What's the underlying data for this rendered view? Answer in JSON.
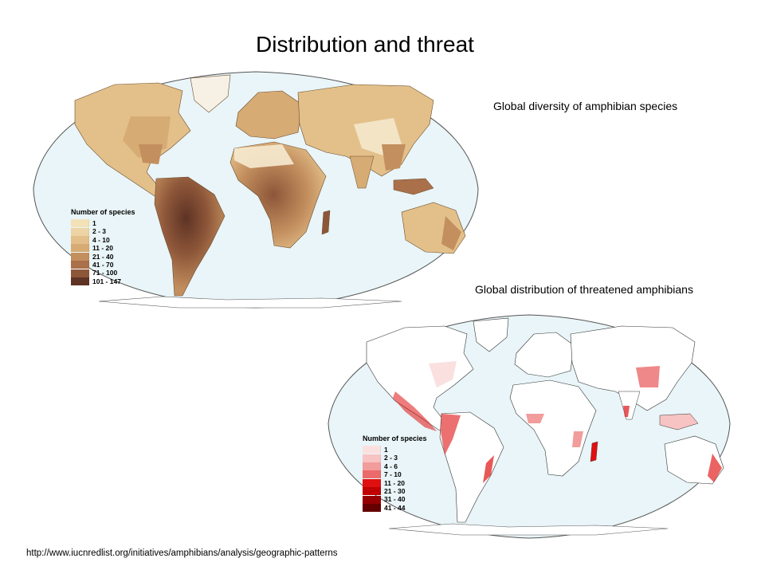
{
  "title": "Distribution and threat",
  "maps": {
    "diversity": {
      "caption": "Global diversity of amphibian species",
      "legend_title": "Number of species",
      "legend": [
        {
          "label": "1",
          "color": "#f3e2b8"
        },
        {
          "label": "2 - 3",
          "color": "#ecd4a4"
        },
        {
          "label": "4 - 10",
          "color": "#e3c08a"
        },
        {
          "label": "11 - 20",
          "color": "#d6ab74"
        },
        {
          "label": "21 - 40",
          "color": "#c38f5e"
        },
        {
          "label": "41 - 70",
          "color": "#a9704a"
        },
        {
          "label": "71 - 100",
          "color": "#8d5639"
        },
        {
          "label": "101 - 147",
          "color": "#5e3324"
        }
      ],
      "ocean_color": "#e9f5f8"
    },
    "threat": {
      "caption": "Global distribution of threatened amphibians",
      "legend_title": "Number of species",
      "legend": [
        {
          "label": "1",
          "color": "#fbe0e0"
        },
        {
          "label": "2 - 3",
          "color": "#f7c3c3"
        },
        {
          "label": "4 - 6",
          "color": "#f29c9c"
        },
        {
          "label": "7 - 10",
          "color": "#eb6a6a"
        },
        {
          "label": "11 - 20",
          "color": "#e01010"
        },
        {
          "label": "21 - 30",
          "color": "#c00000"
        },
        {
          "label": "31 - 40",
          "color": "#960000"
        },
        {
          "label": "41 - 44",
          "color": "#640000"
        }
      ],
      "ocean_color": "#e9f5f8"
    }
  },
  "source_url": "http://www.iucnredlist.org/initiatives/amphibians/analysis/geographic-patterns"
}
